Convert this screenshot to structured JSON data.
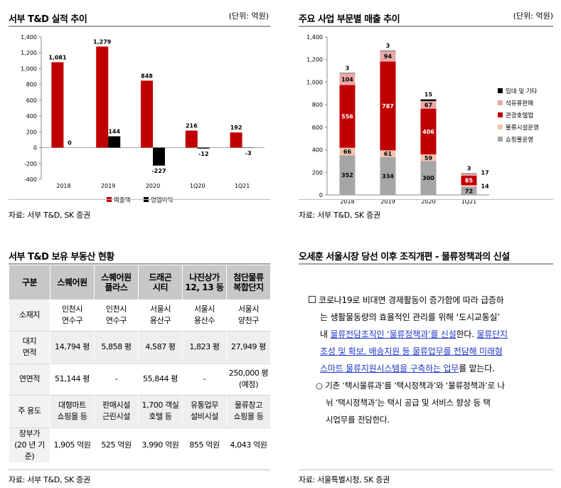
{
  "chart1": {
    "title": "서부 T&D 실적 추이",
    "unit": "(단위: 억원)",
    "source": "자료: 서부 T&D, SK 증권"
  },
  "chart2": {
    "title": "주요 사업 부문별 매출 추이",
    "unit": "(단위: 억원)",
    "source": "자료: 서부 T&D, SK 증권"
  },
  "table_panel": {
    "title": "서부 T&D 보유 부동산 현황",
    "source": "자료: 서부 T&D, SK 증권",
    "header": [
      "구분",
      "스퀘어원",
      "스퀘어원|플라스",
      "드래곤|시티",
      "나진상가|12, 13 동",
      "첨단물류|복합단지"
    ],
    "rows": [
      {
        "label": "소재지",
        "cells": [
          "인천시|연수구",
          "인천시|연수구",
          "서울시|용산구",
          "서울시|용산수",
          "서울시|양천구"
        ]
      },
      {
        "label": "대지|면적",
        "cells": [
          "14,794 평",
          "5,858 평",
          "4,587 평",
          "1,823 평",
          "27,949 평"
        ]
      },
      {
        "label": "연면적",
        "cells": [
          "51,144 평",
          "-",
          "55,844 평",
          "-",
          "250,000 평|(예정)"
        ]
      },
      {
        "label": "주 용도",
        "cells": [
          "대형마트|쇼핑몰 등",
          "판매시설|근린시설",
          "1,700 객실|호텔 등",
          "유통업무|설비시설",
          "물류창고|쇼핑몰 등"
        ]
      },
      {
        "label": "장부가|(20 년 기준)",
        "cells": [
          "1,905 억원",
          "525 억원",
          "3,990 억원",
          "855 억원",
          "4,043 억원"
        ]
      }
    ]
  },
  "memo_panel": {
    "title": "오세훈 서울시장 당선 이후 조직개편 - 물류정책과의 신설",
    "source": "자료: 서울특별시청, SK 증권",
    "p1_a": "코로나19로 비대면 경제활동이 증가함에 따라 급증하",
    "p1_b": "는 생활물동량의 효율적인 관리를 위해 ‘도시교통실’",
    "p1_c1": "내 ",
    "p1_c2": "물류전담조직인 ‘물류정책과’를 신설",
    "p1_c3": "한다. ",
    "p1_c4": "물류단지",
    "p1_d": "조성 및 확보, 배송지원 등 물류업무를 전담해 미래형",
    "p1_e1": "스마트 물류지원시스템을 구축하는 업무",
    "p1_e2": "를 맡는다.",
    "p2_a": "○ 기존 ‘택시물류과’를 ‘택시정책과’와 ‘물류정책과’로 나",
    "p2_b": "뉘 ‘택시정책과’는 택시 공급 및 서비스 향상 등 택",
    "p2_c": "시업무를 전담한다."
  },
  "chart_data": [
    {
      "type": "bar",
      "title": "서부 T&D 실적 추이",
      "categories": [
        "2018",
        "2019",
        "2020",
        "1Q20",
        "1Q21"
      ],
      "ylim": [
        -400,
        1400
      ],
      "yticks": [
        -400,
        -200,
        0,
        200,
        400,
        600,
        800,
        1000,
        1200,
        1400
      ],
      "grid": false,
      "legend": "bottom",
      "series": [
        {
          "name": "매출액",
          "color": "#c00000",
          "values": [
            1081,
            1279,
            848,
            216,
            192
          ]
        },
        {
          "name": "영업이익",
          "color": "#000000",
          "values": [
            0,
            144,
            -227,
            -12,
            -3
          ]
        }
      ]
    },
    {
      "type": "bar",
      "stacked": true,
      "title": "주요 사업 부문별 매출 추이",
      "categories": [
        "2018",
        "2019",
        "2020",
        "1Q21"
      ],
      "ylim": [
        0,
        1400
      ],
      "yticks": [
        0,
        200,
        400,
        600,
        800,
        1000,
        1200,
        1400
      ],
      "grid": false,
      "legend": "right",
      "series": [
        {
          "name": "쇼핑몰운영",
          "color": "#a6a6a6",
          "values": [
            352,
            334,
            300,
            72
          ]
        },
        {
          "name": "물류시설운영",
          "color": "#f2c4b0",
          "values": [
            66,
            61,
            59,
            14
          ]
        },
        {
          "name": "관광호텔업",
          "color": "#c00000",
          "values": [
            556,
            787,
            406,
            85
          ]
        },
        {
          "name": "석유류판매",
          "color": "#e8a8a8",
          "values": [
            104,
            94,
            67,
            17
          ]
        },
        {
          "name": "임대 및 기타",
          "color": "#000000",
          "values": [
            3,
            3,
            15,
            3
          ]
        }
      ]
    }
  ]
}
